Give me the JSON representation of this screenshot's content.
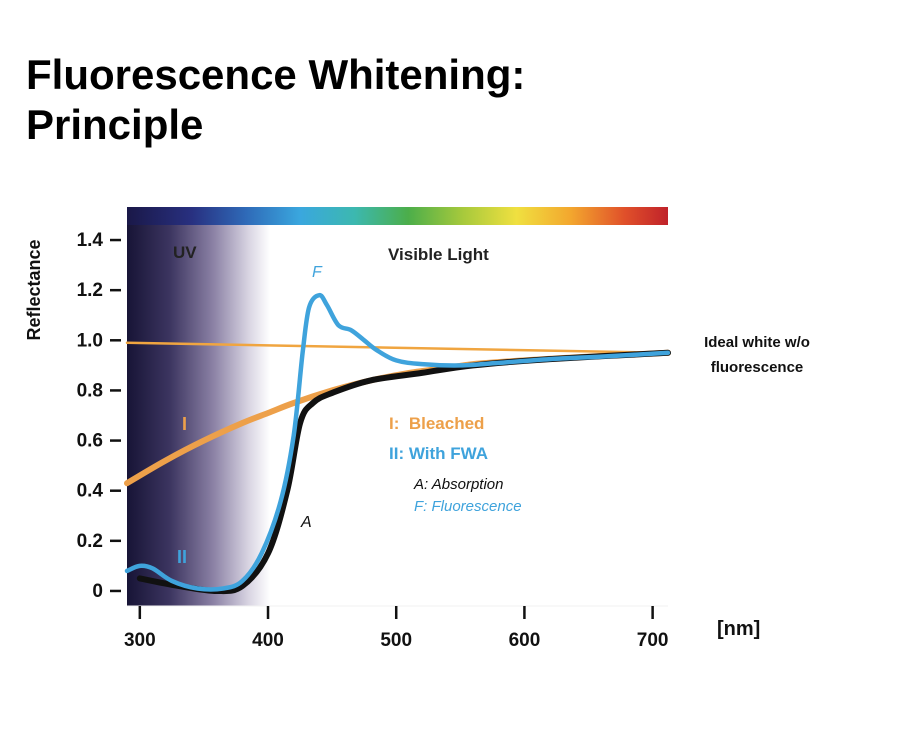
{
  "slide": {
    "title_line1": "Fluorescence Whitening:",
    "title_line2": "Principle"
  },
  "chart_data": {
    "type": "line",
    "title": "Fluorescence Whitening: Principle",
    "xlabel": "[nm]",
    "ylabel": "Reflectance",
    "xlim": [
      290,
      712
    ],
    "ylim": [
      -0.06,
      1.46
    ],
    "x_ticks": [
      300,
      400,
      500,
      600,
      700
    ],
    "x_tick_labels": [
      "300",
      "400",
      "500",
      "600",
      "700"
    ],
    "y_ticks": [
      0,
      0.2,
      0.4,
      0.6,
      0.8,
      1.0,
      1.2,
      1.4
    ],
    "y_tick_labels": [
      "0",
      "0.2",
      "0.4",
      "0.6",
      "0.8",
      "1.0",
      "1.2",
      "1.4"
    ],
    "grid": false,
    "regions": [
      {
        "label": "UV",
        "from": 290,
        "to": 400
      },
      {
        "label": "Visible Light",
        "from": 400,
        "to": 712
      }
    ],
    "spectrum_bar": true,
    "series": [
      {
        "key": "ideal",
        "color": "#f0a540",
        "x": [
          290,
          712
        ],
        "y": [
          0.99,
          0.95
        ]
      },
      {
        "key": "bleached",
        "color": "#eda04a",
        "x": [
          290,
          320,
          350,
          380,
          400,
          420,
          450,
          480,
          510,
          540,
          560,
          600,
          650,
          712
        ],
        "y": [
          0.43,
          0.52,
          0.6,
          0.67,
          0.71,
          0.75,
          0.8,
          0.84,
          0.87,
          0.89,
          0.905,
          0.92,
          0.935,
          0.95
        ]
      },
      {
        "key": "absorption",
        "color": "#111111",
        "x": [
          300,
          330,
          360,
          380,
          400,
          415,
          425,
          435,
          450,
          480,
          520,
          560,
          620,
          712
        ],
        "y": [
          0.05,
          0.02,
          0.0,
          0.02,
          0.15,
          0.4,
          0.67,
          0.75,
          0.79,
          0.84,
          0.87,
          0.9,
          0.925,
          0.95
        ]
      },
      {
        "key": "fwa",
        "color": "#3fa3dc",
        "x": [
          290,
          300,
          310,
          325,
          345,
          365,
          380,
          395,
          410,
          420,
          427,
          432,
          440,
          446,
          455,
          465,
          475,
          485,
          500,
          520,
          550,
          580,
          620,
          660,
          712
        ],
        "y": [
          0.08,
          0.1,
          0.09,
          0.04,
          0.01,
          0.01,
          0.04,
          0.15,
          0.36,
          0.62,
          0.95,
          1.13,
          1.18,
          1.14,
          1.06,
          1.04,
          1.0,
          0.96,
          0.92,
          0.905,
          0.9,
          0.91,
          0.925,
          0.935,
          0.95
        ]
      }
    ],
    "annotations": [
      {
        "text": "Ideal white w/o",
        "color": "#111111"
      },
      {
        "text": "fluorescence",
        "color": "#111111"
      },
      {
        "text": "I",
        "color": "#eda04a"
      },
      {
        "text": "II",
        "color": "#3fa3dc"
      },
      {
        "text": "F",
        "color": "#3fa3dc"
      },
      {
        "text": "A",
        "color": "#111111"
      }
    ],
    "legend": {
      "placement": "center-right",
      "entries": [
        {
          "text": "I:  Bleached",
          "color": "#eda04a"
        },
        {
          "text": "II: With FWA",
          "color": "#3fa3dc"
        },
        {
          "text": "A: Absorption",
          "color": "#111111"
        },
        {
          "text": "F: Fluorescence",
          "color": "#3fa3dc"
        }
      ]
    }
  }
}
